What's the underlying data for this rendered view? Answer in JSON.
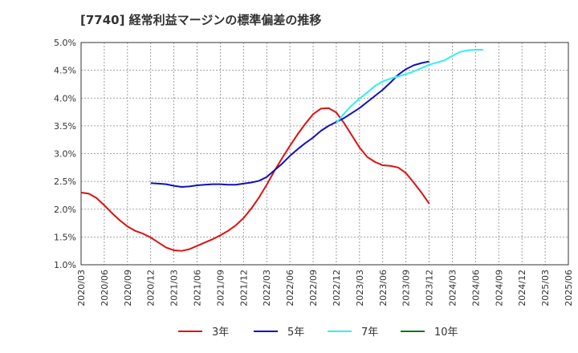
{
  "chart_data": {
    "type": "line",
    "title": "[7740]  経常利益マージンの標準偏差の推移",
    "xlabel": "",
    "ylabel": "",
    "x_ticks": [
      "2020/03",
      "2020/06",
      "2020/09",
      "2020/12",
      "2021/03",
      "2021/06",
      "2021/09",
      "2021/12",
      "2022/03",
      "2022/06",
      "2022/09",
      "2022/12",
      "2023/03",
      "2023/06",
      "2023/09",
      "2023/12",
      "2024/03",
      "2024/06",
      "2024/09",
      "2024/12",
      "2025/03",
      "2025/06"
    ],
    "y_ticks": [
      "1.0%",
      "1.5%",
      "2.0%",
      "2.5%",
      "3.0%",
      "3.5%",
      "4.0%",
      "4.5%",
      "5.0%"
    ],
    "ylim": [
      1.0,
      5.0
    ],
    "grid": true,
    "legend_position": "bottom",
    "series": [
      {
        "name": "3年",
        "color": "#dd1111",
        "start": "2020/03",
        "values": [
          2.3,
          2.28,
          2.2,
          2.07,
          1.93,
          1.8,
          1.69,
          1.61,
          1.56,
          1.49,
          1.4,
          1.31,
          1.26,
          1.25,
          1.28,
          1.34,
          1.4,
          1.46,
          1.53,
          1.61,
          1.71,
          1.84,
          2.01,
          2.21,
          2.44,
          2.69,
          2.92,
          3.14,
          3.35,
          3.54,
          3.71,
          3.81,
          3.82,
          3.74,
          3.55,
          3.33,
          3.11,
          2.94,
          2.85,
          2.79,
          2.78,
          2.75,
          2.65,
          2.48,
          2.3,
          2.1
        ]
      },
      {
        "name": "5年",
        "color": "#1111bb",
        "start": "2020/12",
        "values": [
          2.47,
          2.46,
          2.45,
          2.42,
          2.4,
          2.41,
          2.43,
          2.44,
          2.45,
          2.45,
          2.44,
          2.44,
          2.46,
          2.48,
          2.51,
          2.58,
          2.7,
          2.82,
          2.96,
          3.08,
          3.19,
          3.29,
          3.41,
          3.5,
          3.57,
          3.64,
          3.73,
          3.82,
          3.93,
          4.04,
          4.15,
          4.28,
          4.42,
          4.52,
          4.59,
          4.63,
          4.66
        ]
      },
      {
        "name": "7年",
        "color": "#33eeee",
        "start": "2022/12",
        "values": [
          3.55,
          3.72,
          3.87,
          3.99,
          4.1,
          4.22,
          4.3,
          4.35,
          4.39,
          4.43,
          4.48,
          4.54,
          4.6,
          4.64,
          4.68,
          4.76,
          4.83,
          4.86,
          4.87,
          4.87
        ]
      },
      {
        "name": "10年",
        "color": "#117711",
        "start": "2020/03",
        "values": []
      }
    ]
  }
}
